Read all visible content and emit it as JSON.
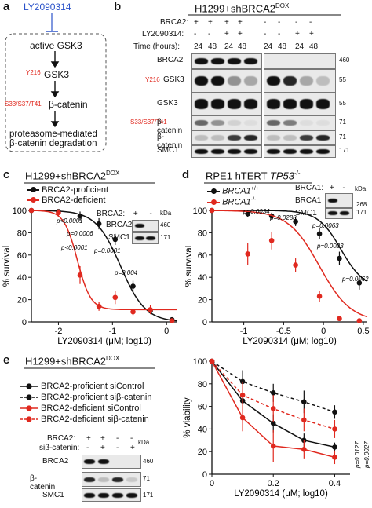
{
  "panel_a": {
    "label": "a",
    "inhibitor": "LY2090314",
    "nodes": [
      "active GSK3",
      "GSK3",
      "β-catenin",
      "proteasome-mediated",
      "β-catenin degradation"
    ],
    "mods": [
      "Y216",
      "S33/S37/T41"
    ]
  },
  "panel_b": {
    "label": "b",
    "title": "H1299+shBRCA2",
    "title_sup": "DOX",
    "row_labels": [
      "BRCA2:",
      "LY2090314:",
      "Time (hours):"
    ],
    "brca2_signs": [
      "+",
      "+",
      "+",
      "+",
      "-",
      "-",
      "-",
      "-"
    ],
    "ly_signs": [
      "-",
      "-",
      "+",
      "+",
      "-",
      "-",
      "+",
      "+"
    ],
    "times": [
      "24",
      "48",
      "24",
      "48",
      "24",
      "48",
      "24",
      "48"
    ],
    "blots": [
      "BRCA2",
      "GSK3",
      "GSK3",
      "β-catenin",
      "β-catenin",
      "SMC1"
    ],
    "blot_mods": [
      "",
      "Y216",
      "",
      "S33/S37/T41",
      "",
      ""
    ],
    "kda": [
      "460",
      "55",
      "55",
      "71",
      "71",
      "171"
    ]
  },
  "panel_c": {
    "label": "c",
    "title": "H1299+shBRCA2",
    "title_sup": "DOX",
    "legend": [
      "BRCA2-proficient",
      "BRCA2-deficient"
    ],
    "pvals": [
      "p<0.0001",
      "p=0.0006",
      "p<0.0001",
      "p=0.0001",
      "p=0.004"
    ],
    "inset_header": "BRCA2:",
    "inset_signs": [
      "+",
      "-"
    ],
    "inset_kda_label": "kDa",
    "inset_rows": [
      "BRCA2",
      "SMC1"
    ],
    "inset_kda": [
      "460",
      "171"
    ]
  },
  "panel_d": {
    "label": "d",
    "title": "RPE1 hTERT ",
    "title_italic": "TP53",
    "title_sup": "-/-",
    "legend": [
      "BRCA1",
      "BRCA1"
    ],
    "legend_sup": [
      "+/+",
      "-/-"
    ],
    "pvals": [
      "p=0.0034",
      "p=0.0288",
      "p=0.0063",
      "p=0.0023",
      "p=0.0062"
    ],
    "inset_header": "BRCA1:",
    "inset_signs": [
      "+",
      "-"
    ],
    "inset_kda_label": "kDa",
    "inset_rows": [
      "BRCA1",
      "SMC1"
    ],
    "inset_kda": [
      "268",
      "171"
    ]
  },
  "panel_e": {
    "label": "e",
    "title": "H1299+shBRCA2",
    "title_sup": "DOX",
    "legend": [
      "BRCA2-proficient siControl",
      "BRCA2-proficient siβ-catenin",
      "BRCA2-deficient siControl",
      "BRCA2-deficient siβ-catenin"
    ],
    "row_labels": [
      "BRCA2:",
      "siβ-catenin:"
    ],
    "brca2_signs": [
      "+",
      "+",
      "-",
      "-"
    ],
    "si_signs": [
      "-",
      "+",
      "-",
      "+"
    ],
    "kda_label": "kDa",
    "blots": [
      "BRCA2",
      "β-catenin",
      "SMC1"
    ],
    "kda": [
      "460",
      "71",
      "171"
    ],
    "pvals": [
      "p=0.0127",
      "p=0.0027"
    ]
  },
  "chart_data": [
    {
      "type": "line",
      "panel": "c",
      "xlabel": "LY2090314 (μM; log10)",
      "ylabel": "% survival",
      "xlim": [
        -2.5,
        0.2
      ],
      "ylim": [
        0,
        100
      ],
      "xticks": [
        -2,
        -1,
        0
      ],
      "yticks": [
        0,
        20,
        40,
        60,
        80,
        100
      ],
      "series": [
        {
          "name": "BRCA2-proficient",
          "color": "#111111",
          "x": [
            -2.5,
            -2.0,
            -1.6,
            -1.25,
            -0.95,
            -0.62,
            -0.3,
            0.1
          ],
          "y": [
            100,
            99,
            95,
            88,
            74,
            32,
            10,
            2
          ]
        },
        {
          "name": "BRCA2-deficient",
          "color": "#e0291f",
          "x": [
            -2.5,
            -2.0,
            -1.6,
            -1.25,
            -0.95,
            -0.62,
            -0.3,
            0.1
          ],
          "y": [
            100,
            98,
            42,
            14,
            22,
            9,
            11,
            1
          ]
        }
      ]
    },
    {
      "type": "line",
      "panel": "d",
      "xlabel": "LY2090314 (μM; log10)",
      "ylabel": "% survival",
      "xlim": [
        -1.4,
        0.55
      ],
      "ylim": [
        0,
        100
      ],
      "xticks": [
        -1,
        -0.5,
        0,
        0.5
      ],
      "yticks": [
        0,
        20,
        40,
        60,
        80,
        100
      ],
      "series": [
        {
          "name": "BRCA1+/+",
          "color": "#111111",
          "x": [
            -1.4,
            -0.95,
            -0.65,
            -0.35,
            -0.05,
            0.2,
            0.45
          ],
          "y": [
            100,
            97,
            95,
            90,
            79,
            57,
            35
          ]
        },
        {
          "name": "BRCA1-/-",
          "color": "#e0291f",
          "x": [
            -1.4,
            -0.95,
            -0.65,
            -0.35,
            -0.05,
            0.2,
            0.45
          ],
          "y": [
            100,
            61,
            73,
            51,
            23,
            3,
            1
          ]
        }
      ]
    },
    {
      "type": "line",
      "panel": "e",
      "xlabel": "LY2090314 (μM; log10)",
      "ylabel": "% viability",
      "xlim": [
        0,
        0.45
      ],
      "ylim": [
        0,
        100
      ],
      "xticks": [
        0,
        0.2,
        0.4
      ],
      "yticks": [
        0,
        20,
        40,
        60,
        80,
        100
      ],
      "series": [
        {
          "name": "BRCA2-proficient siControl",
          "color": "#111111",
          "dashed": false,
          "x": [
            0,
            0.1,
            0.2,
            0.3,
            0.4
          ],
          "y": [
            100,
            65,
            45,
            30,
            24
          ]
        },
        {
          "name": "BRCA2-proficient siβ-catenin",
          "color": "#111111",
          "dashed": true,
          "x": [
            0,
            0.1,
            0.2,
            0.3,
            0.4
          ],
          "y": [
            100,
            82,
            72,
            64,
            55
          ]
        },
        {
          "name": "BRCA2-deficient siControl",
          "color": "#e0291f",
          "dashed": false,
          "x": [
            0,
            0.1,
            0.2,
            0.3,
            0.4
          ],
          "y": [
            100,
            50,
            25,
            22,
            15
          ]
        },
        {
          "name": "BRCA2-deficient siβ-catenin",
          "color": "#e0291f",
          "dashed": true,
          "x": [
            0,
            0.1,
            0.2,
            0.3,
            0.4
          ],
          "y": [
            100,
            70,
            58,
            48,
            40
          ]
        }
      ]
    }
  ]
}
